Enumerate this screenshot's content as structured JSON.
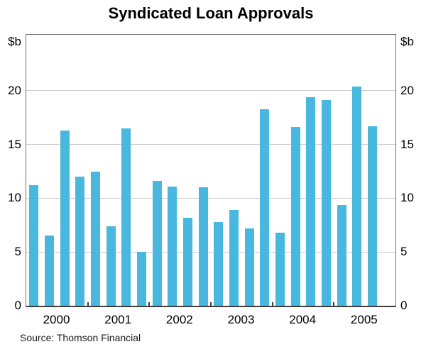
{
  "chart_data": {
    "type": "bar",
    "title": "Syndicated Loan Approvals",
    "unit_label": "$b",
    "source": "Source: Thomson Financial",
    "frequency": "quarterly",
    "bar_color": "#48b8df",
    "grid": true,
    "legend": "none",
    "ylim": [
      0,
      25.2
    ],
    "yticks": [
      0,
      5,
      10,
      15,
      20
    ],
    "x_axis_year_labels": [
      "2000",
      "2001",
      "2002",
      "2003",
      "2004",
      "2005"
    ],
    "slots_per_year": 4,
    "x": [
      "2000 Q1",
      "2000 Q2",
      "2000 Q3",
      "2000 Q4",
      "2001 Q1",
      "2001 Q2",
      "2001 Q3",
      "2001 Q4",
      "2002 Q1",
      "2002 Q2",
      "2002 Q3",
      "2002 Q4",
      "2003 Q1",
      "2003 Q2",
      "2003 Q3",
      "2003 Q4",
      "2004 Q1",
      "2004 Q2",
      "2004 Q3",
      "2004 Q4",
      "2005 Q1",
      "2005 Q2",
      "2005 Q3"
    ],
    "series": [
      {
        "name": "Syndicated loan approvals",
        "values": [
          11.2,
          6.5,
          16.3,
          12.0,
          12.5,
          7.4,
          16.5,
          5.0,
          11.6,
          11.1,
          8.2,
          11.0,
          7.8,
          8.9,
          7.2,
          18.3,
          6.8,
          16.6,
          19.4,
          19.1,
          9.4,
          20.4,
          16.7
        ]
      }
    ]
  }
}
